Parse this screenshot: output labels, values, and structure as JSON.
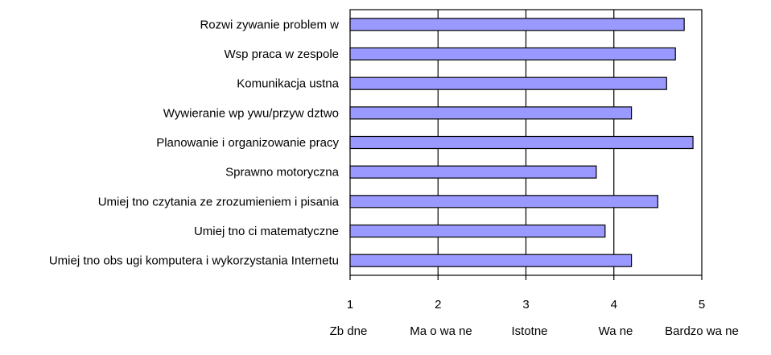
{
  "chart_data": {
    "type": "bar",
    "orientation": "horizontal",
    "categories": [
      "Rozwi  zywanie problem  w",
      "Wsp   praca w zespole",
      "Komunikacja ustna",
      "Wywieranie wp ywu/przyw  dztwo",
      "Planowanie i organizowanie pracy",
      "Sprawno     motoryczna",
      "Umiej  tno     czytania ze zrozumieniem i pisania",
      "Umiej  tno  ci matematyczne",
      "Umiej  tno     obs ugi komputera i wykorzystania Internetu"
    ],
    "values": [
      4.8,
      4.7,
      4.6,
      4.2,
      4.9,
      3.8,
      4.5,
      3.9,
      4.2
    ],
    "xlim": [
      1,
      5
    ],
    "ticks": [
      "1",
      "2",
      "3",
      "4",
      "5"
    ],
    "scale_labels": [
      "Zb  dne",
      "Ma o wa  ne",
      "Istotne",
      "Wa  ne",
      "Bardzo wa  ne"
    ],
    "grid": true,
    "bar_color": "#9999ff"
  }
}
